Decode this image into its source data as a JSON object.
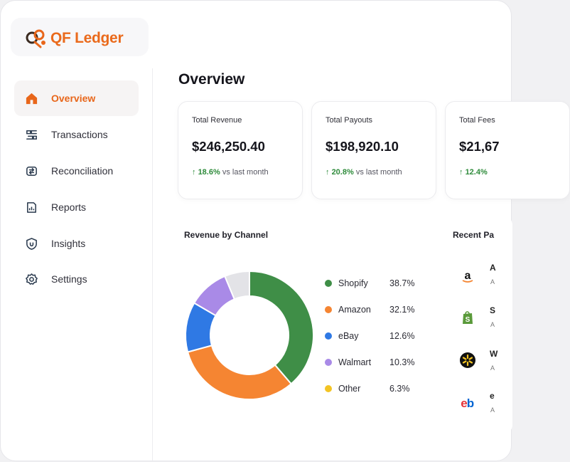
{
  "app": {
    "logo_text": "QF Ledger"
  },
  "sidebar": {
    "items": [
      {
        "label": "Overview",
        "icon": "home-icon",
        "active": true
      },
      {
        "label": "Transactions",
        "icon": "transactions-icon",
        "active": false
      },
      {
        "label": "Reconciliation",
        "icon": "reconciliation-icon",
        "active": false
      },
      {
        "label": "Reports",
        "icon": "reports-icon",
        "active": false
      },
      {
        "label": "Insights",
        "icon": "insights-icon",
        "active": false
      },
      {
        "label": "Settings",
        "icon": "gear-icon",
        "active": false
      }
    ]
  },
  "main": {
    "title": "Overview",
    "cards": [
      {
        "label": "Total Revenue",
        "value": "$246,250.40",
        "delta_pct": "18.6%",
        "delta_text": "vs last month"
      },
      {
        "label": "Total Payouts",
        "value": "$198,920.10",
        "delta_pct": "20.8%",
        "delta_text": "vs last month"
      },
      {
        "label": "Total Fees",
        "value": "$21,67",
        "delta_pct": "12.4%",
        "delta_text": ""
      }
    ],
    "revenue_panel": {
      "title": "Revenue by Channel"
    },
    "recent_panel": {
      "title": "Recent Pa",
      "items": [
        {
          "icon": "amazon-icon",
          "initial": "A",
          "sub": "A"
        },
        {
          "icon": "shopify-icon",
          "initial": "S",
          "sub": "A"
        },
        {
          "icon": "walmart-icon",
          "initial": "W",
          "sub": "A"
        },
        {
          "icon": "ebay-icon",
          "initial": "e",
          "sub": "A"
        }
      ]
    }
  },
  "colors": {
    "accent": "#e8661a",
    "positive": "#2e8b3b",
    "shopify": "#3f8e47",
    "amazon": "#f58532",
    "ebay": "#2f79e4",
    "walmart": "#a98ae7",
    "other": "#f3c424",
    "unlabeled": "#e3e3e7"
  },
  "chart_data": {
    "type": "pie",
    "title": "Revenue by Channel",
    "categories": [
      "Shopify",
      "Amazon",
      "eBay",
      "Walmart",
      "Other"
    ],
    "values": [
      38.7,
      32.1,
      12.6,
      10.3,
      6.3
    ],
    "value_labels": [
      "38.7%",
      "32.1%",
      "12.6%",
      "10.3%",
      "6.3%"
    ],
    "colors": [
      "#3f8e47",
      "#f58532",
      "#2f79e4",
      "#a98ae7",
      "#e3e3e7"
    ],
    "legend_colors": [
      "#3f8e47",
      "#f58532",
      "#2f79e4",
      "#a98ae7",
      "#f3c424"
    ],
    "donut": true,
    "legend": "right"
  }
}
